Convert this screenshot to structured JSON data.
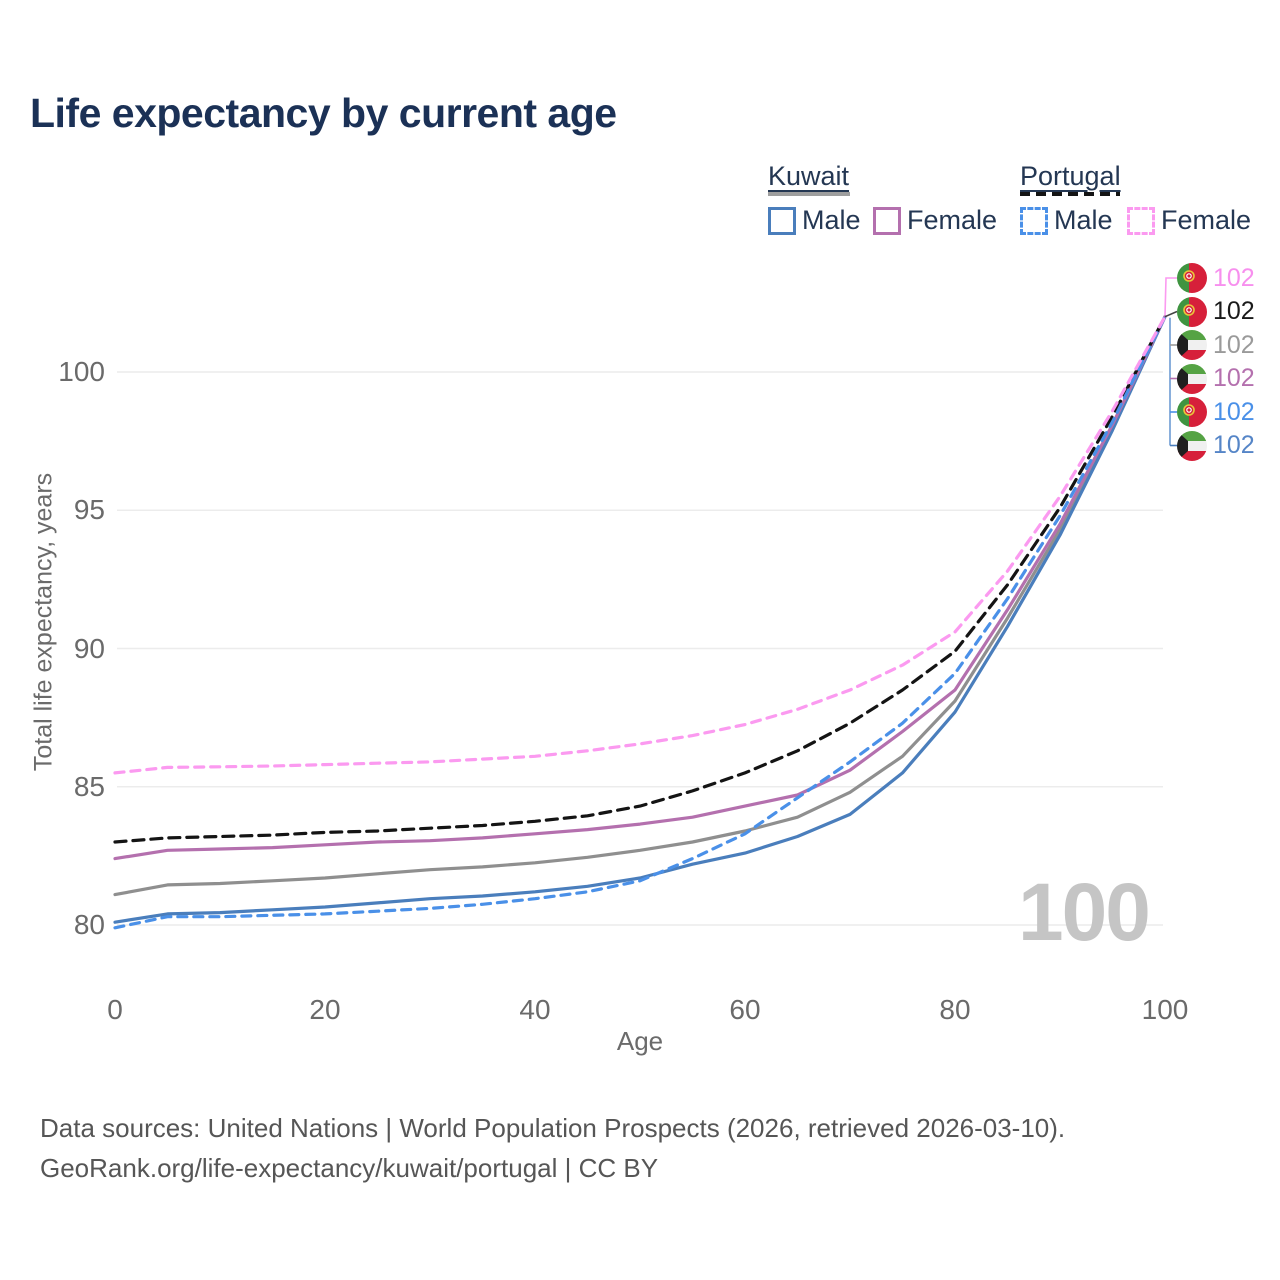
{
  "title": "Life expectancy by current age",
  "legend": {
    "groups": [
      {
        "label": "Kuwait",
        "line_style": "solid",
        "items": [
          {
            "label": "Male"
          },
          {
            "label": "Female"
          }
        ]
      },
      {
        "label": "Portugal",
        "line_style": "dashed",
        "items": [
          {
            "label": "Male"
          },
          {
            "label": "Female"
          }
        ]
      }
    ]
  },
  "watermark": "100",
  "chart_data": {
    "type": "line",
    "title": "Life expectancy by current age",
    "xlabel": "Age",
    "ylabel": "Total life expectancy, years",
    "x_ticks": [
      0,
      20,
      40,
      60,
      80,
      100
    ],
    "y_ticks": [
      80,
      85,
      90,
      95,
      100
    ],
    "xlim": [
      0,
      100
    ],
    "ylim": [
      79.5,
      103
    ],
    "grid": "horizontal",
    "legend_position": "top-right",
    "x_step": 5,
    "x": [
      0,
      5,
      10,
      15,
      20,
      25,
      30,
      35,
      40,
      45,
      50,
      55,
      60,
      65,
      70,
      75,
      80,
      85,
      90,
      95,
      100
    ],
    "series": [
      {
        "name": "Kuwait Both sexes",
        "country": "kuwait",
        "sex": "both",
        "color": "#8f8f8f",
        "dash": null,
        "values": [
          81.1,
          81.45,
          81.5,
          81.6,
          81.7,
          81.85,
          82.0,
          82.1,
          82.25,
          82.45,
          82.7,
          83.0,
          83.4,
          83.9,
          84.8,
          86.1,
          88.1,
          91.1,
          94.3,
          98.0,
          102
        ]
      },
      {
        "name": "Kuwait Male",
        "country": "kuwait",
        "sex": "male",
        "color": "#4a7ebc",
        "dash": null,
        "values": [
          80.1,
          80.4,
          80.45,
          80.55,
          80.65,
          80.8,
          80.95,
          81.05,
          81.2,
          81.4,
          81.7,
          82.2,
          82.6,
          83.2,
          84.0,
          85.5,
          87.7,
          90.8,
          94.1,
          97.9,
          102
        ]
      },
      {
        "name": "Kuwait Female",
        "country": "kuwait",
        "sex": "female",
        "color": "#b470ae",
        "dash": null,
        "values": [
          82.4,
          82.7,
          82.75,
          82.8,
          82.9,
          83.0,
          83.05,
          83.15,
          83.3,
          83.45,
          83.65,
          83.9,
          84.3,
          84.7,
          85.6,
          87.0,
          88.5,
          91.4,
          94.5,
          98.1,
          102
        ]
      },
      {
        "name": "Portugal Both sexes",
        "country": "portugal",
        "sex": "both",
        "color": "#141414",
        "dash": "11,7",
        "values": [
          83.0,
          83.15,
          83.2,
          83.25,
          83.35,
          83.4,
          83.5,
          83.6,
          83.75,
          83.95,
          84.3,
          84.85,
          85.5,
          86.3,
          87.3,
          88.5,
          89.9,
          92.3,
          95.1,
          98.4,
          102
        ]
      },
      {
        "name": "Portugal Male",
        "country": "portugal",
        "sex": "male",
        "color": "#4a90e8",
        "dash": "9,7",
        "values": [
          79.9,
          80.3,
          80.3,
          80.35,
          80.4,
          80.5,
          80.6,
          80.75,
          80.95,
          81.2,
          81.6,
          82.4,
          83.3,
          84.6,
          85.9,
          87.3,
          89.1,
          91.8,
          94.8,
          98.2,
          102
        ]
      },
      {
        "name": "Portugal Female",
        "country": "portugal",
        "sex": "female",
        "color": "#fb9af0",
        "dash": "9,7",
        "values": [
          85.5,
          85.7,
          85.72,
          85.75,
          85.8,
          85.85,
          85.9,
          86.0,
          86.1,
          86.3,
          86.55,
          86.85,
          87.25,
          87.8,
          88.5,
          89.4,
          90.6,
          92.8,
          95.5,
          98.6,
          102
        ]
      }
    ],
    "end_labels": [
      {
        "country": "portugal",
        "series": "Portugal Female",
        "value": "102",
        "color": "#f78fee"
      },
      {
        "country": "portugal",
        "series": "Portugal Both sexes",
        "value": "102",
        "color": "#1a1a1a"
      },
      {
        "country": "kuwait",
        "series": "Kuwait Both sexes",
        "value": "102",
        "color": "#9a9a9a"
      },
      {
        "country": "kuwait",
        "series": "Kuwait Female",
        "value": "102",
        "color": "#b470ae"
      },
      {
        "country": "portugal",
        "series": "Portugal Male",
        "value": "102",
        "color": "#4a90e8"
      },
      {
        "country": "kuwait",
        "series": "Kuwait Male",
        "value": "102",
        "color": "#5585c7"
      }
    ]
  },
  "footer": {
    "line1": "Data sources: United Nations | World Population Prospects (2026, retrieved 2026-03-10).",
    "line2": "GeoRank.org/life-expectancy/kuwait/portugal | CC BY"
  }
}
